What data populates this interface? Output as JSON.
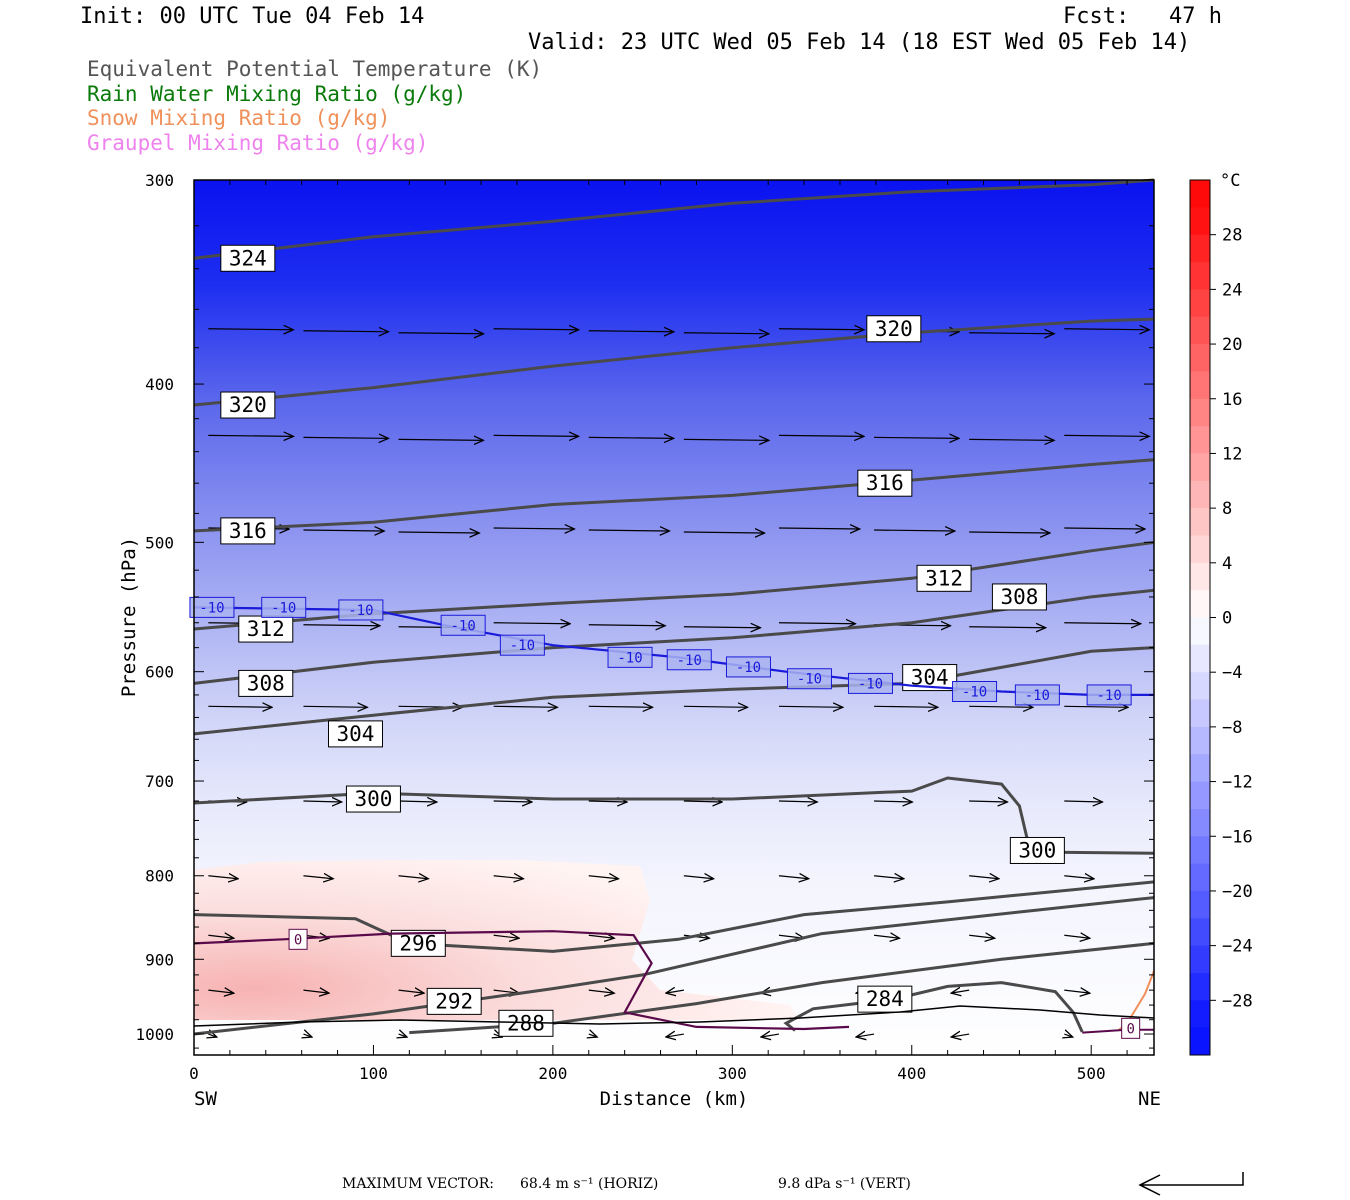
{
  "header": {
    "init": "Init: 00 UTC Tue 04 Feb 14",
    "fcst": "Fcst:   47 h",
    "valid": "Valid: 23 UTC Wed 05 Feb 14 (18 EST Wed 05 Feb 14)"
  },
  "legend": [
    {
      "label": "Equivalent Potential Temperature (K)",
      "color": "#555555"
    },
    {
      "label": "Rain Water Mixing Ratio (g/kg)",
      "color": "#0a7a0a"
    },
    {
      "label": "Snow Mixing Ratio (g/kg)",
      "color": "#f0905a"
    },
    {
      "label": "Graupel Mixing Ratio (g/kg)",
      "color": "#ee82ee"
    }
  ],
  "footer": {
    "max_vector_label": "MAXIMUM VECTOR:",
    "horiz": "68.4 m s⁻¹ (HORIZ)",
    "vert": "9.8 dPa s⁻¹ (VERT)"
  },
  "chart_data": {
    "type": "cross-section contour",
    "xlabel": "Distance (km)",
    "ylabel": "Pressure (hPa)",
    "xlim": [
      0,
      535
    ],
    "ylim": [
      1030,
      300
    ],
    "y_scale": "log-pressure",
    "x_ticks": [
      "0",
      "100",
      "200",
      "300",
      "400",
      "500"
    ],
    "y_ticks": [
      "300",
      "400",
      "500",
      "600",
      "700",
      "800",
      "900",
      "1000"
    ],
    "x_end_labels": {
      "left": "SW",
      "right": "NE"
    },
    "colorbar": {
      "unit": "°C",
      "tick_labels": [
        "28",
        "24",
        "20",
        "16",
        "12",
        "8",
        "4",
        "0",
        "-4",
        "-8",
        "-12",
        "-16",
        "-20",
        "-24",
        "-28"
      ],
      "min": -32,
      "max": 32
    },
    "theta_e_contours": [
      {
        "label": "324",
        "points": [
          [
            0,
            335
          ],
          [
            100,
            325
          ],
          [
            200,
            318
          ],
          [
            300,
            310
          ],
          [
            400,
            305
          ],
          [
            500,
            302
          ],
          [
            535,
            300
          ]
        ]
      },
      {
        "label": "320",
        "points": [
          [
            0,
            412
          ],
          [
            100,
            402
          ],
          [
            200,
            390
          ],
          [
            300,
            380
          ],
          [
            400,
            372
          ],
          [
            500,
            366
          ],
          [
            535,
            365
          ]
        ]
      },
      {
        "label": "316",
        "points": [
          [
            0,
            492
          ],
          [
            100,
            486
          ],
          [
            200,
            474
          ],
          [
            300,
            468
          ],
          [
            400,
            458
          ],
          [
            500,
            448
          ],
          [
            535,
            445
          ]
        ]
      },
      {
        "label": "312",
        "points": [
          [
            0,
            565
          ],
          [
            100,
            553
          ],
          [
            200,
            545
          ],
          [
            300,
            538
          ],
          [
            400,
            526
          ],
          [
            500,
            506
          ],
          [
            535,
            500
          ]
        ]
      },
      {
        "label": "308",
        "points": [
          [
            0,
            610
          ],
          [
            100,
            592
          ],
          [
            200,
            580
          ],
          [
            300,
            572
          ],
          [
            400,
            560
          ],
          [
            500,
            540
          ],
          [
            535,
            535
          ]
        ]
      },
      {
        "label": "304",
        "points": [
          [
            0,
            655
          ],
          [
            100,
            638
          ],
          [
            200,
            622
          ],
          [
            300,
            615
          ],
          [
            400,
            610
          ],
          [
            500,
            583
          ],
          [
            535,
            580
          ]
        ]
      },
      {
        "label": "300",
        "points": [
          [
            0,
            722
          ],
          [
            100,
            712
          ],
          [
            200,
            718
          ],
          [
            300,
            718
          ],
          [
            400,
            710
          ],
          [
            420,
            697
          ],
          [
            450,
            703
          ],
          [
            460,
            725
          ],
          [
            465,
            765
          ],
          [
            480,
            774
          ],
          [
            535,
            775
          ]
        ]
      },
      {
        "label": "296",
        "points": [
          [
            0,
            845
          ],
          [
            90,
            850
          ],
          [
            120,
            880
          ],
          [
            200,
            890
          ],
          [
            270,
            875
          ],
          [
            340,
            845
          ],
          [
            420,
            830
          ],
          [
            535,
            807
          ]
        ]
      },
      {
        "label": "292",
        "points": [
          [
            0,
            1000
          ],
          [
            100,
            972
          ],
          [
            200,
            938
          ],
          [
            250,
            920
          ],
          [
            350,
            868
          ],
          [
            460,
            842
          ],
          [
            535,
            825
          ]
        ]
      },
      {
        "label": "288",
        "points": [
          [
            120,
            998
          ],
          [
            200,
            985
          ],
          [
            280,
            958
          ],
          [
            350,
            930
          ],
          [
            450,
            900
          ],
          [
            535,
            880
          ]
        ]
      },
      {
        "label": "284",
        "points": [
          [
            335,
            995
          ],
          [
            330,
            985
          ],
          [
            345,
            965
          ],
          [
            390,
            952
          ],
          [
            420,
            935
          ],
          [
            450,
            930
          ],
          [
            480,
            942
          ],
          [
            490,
            970
          ],
          [
            495,
            997
          ]
        ]
      }
    ],
    "temperature_contours": [
      {
        "label": "-10",
        "points": [
          [
            0,
            548
          ],
          [
            100,
            550
          ],
          [
            140,
            562
          ],
          [
            200,
            578
          ],
          [
            270,
            588
          ],
          [
            330,
            600
          ],
          [
            400,
            612
          ],
          [
            450,
            617
          ],
          [
            500,
            620
          ],
          [
            535,
            620
          ]
        ]
      },
      {
        "label": "0",
        "points": [
          [
            0,
            880
          ],
          [
            50,
            875
          ],
          [
            110,
            868
          ],
          [
            200,
            865
          ],
          [
            245,
            870
          ],
          [
            255,
            905
          ],
          [
            240,
            970
          ],
          [
            280,
            990
          ],
          [
            340,
            993
          ],
          [
            365,
            990
          ]
        ]
      }
    ],
    "snow_contour": {
      "points": [
        [
          515,
          995
        ],
        [
          520,
          985
        ],
        [
          530,
          945
        ],
        [
          535,
          915
        ]
      ],
      "label": "0"
    },
    "wind_vectors": {
      "max_horiz": 68.4,
      "max_vert": 9.8
    }
  }
}
